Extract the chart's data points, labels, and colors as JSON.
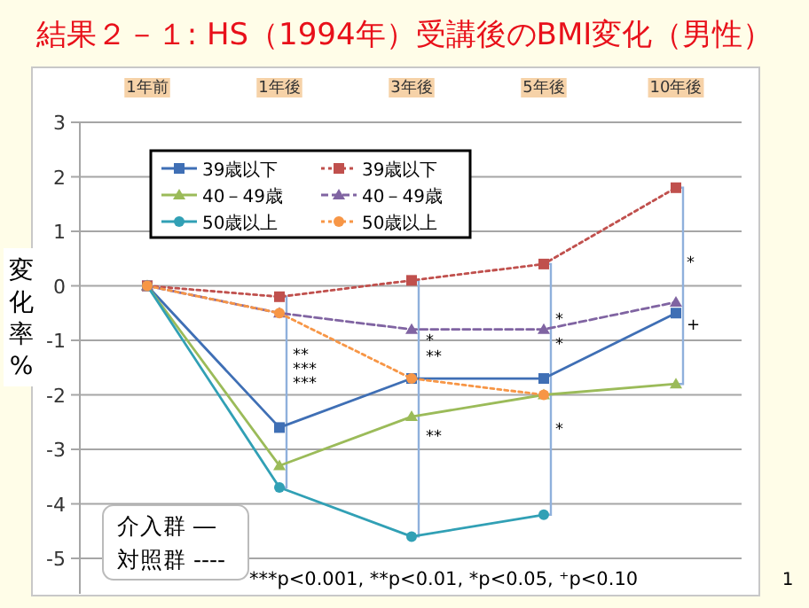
{
  "chart_data": {
    "type": "line",
    "title": "結果２－１: HS（1994年）受講後のBMI変化（男性）",
    "ylabel": "変化率%",
    "categories": [
      "1年前",
      "1年後",
      "3年後",
      "5年後",
      "10年後"
    ],
    "ylim": [
      -5,
      3
    ],
    "yticks": [
      -5,
      -4,
      -3,
      -2,
      -1,
      0,
      1,
      2,
      3
    ],
    "grid": "y",
    "legend": "top left",
    "series": [
      {
        "name": "39歳以下",
        "color": "#3f6fb5",
        "marker": "square",
        "line_style": "solid",
        "values": [
          0,
          -2.6,
          -1.7,
          -1.7,
          -0.5
        ]
      },
      {
        "name": "39歳以下",
        "color": "#c0504d",
        "marker": "square",
        "line_style": "dotted",
        "values": [
          0,
          -0.2,
          0.1,
          0.4,
          1.8
        ]
      },
      {
        "name": "40－49歳",
        "color": "#9bbb59",
        "marker": "triangle",
        "line_style": "solid",
        "values": [
          0,
          -3.3,
          -2.4,
          -2.0,
          -1.8
        ]
      },
      {
        "name": "40－49歳",
        "color": "#8064a2",
        "marker": "triangle",
        "line_style": "dashed",
        "values": [
          0,
          -0.5,
          -0.8,
          -0.8,
          -0.3
        ]
      },
      {
        "name": "50歳以上",
        "color": "#31a0b5",
        "marker": "circle",
        "line_style": "solid",
        "values": [
          0,
          -3.7,
          -4.6,
          -4.2,
          null
        ]
      },
      {
        "name": "50歳以上",
        "color": "#f79646",
        "marker": "circle",
        "line_style": "dotted",
        "values": [
          0,
          -0.5,
          -1.7,
          -2.0,
          null
        ]
      }
    ],
    "annotations": [
      "***p<0.001, **p<0.01, *p<0.05, ⁺p<0.10",
      "1",
      "介入群 ―",
      "対照群 ----",
      "**",
      "***",
      "***",
      "*",
      "**",
      "**",
      "*",
      "*",
      "*",
      "*",
      "+"
    ]
  }
}
